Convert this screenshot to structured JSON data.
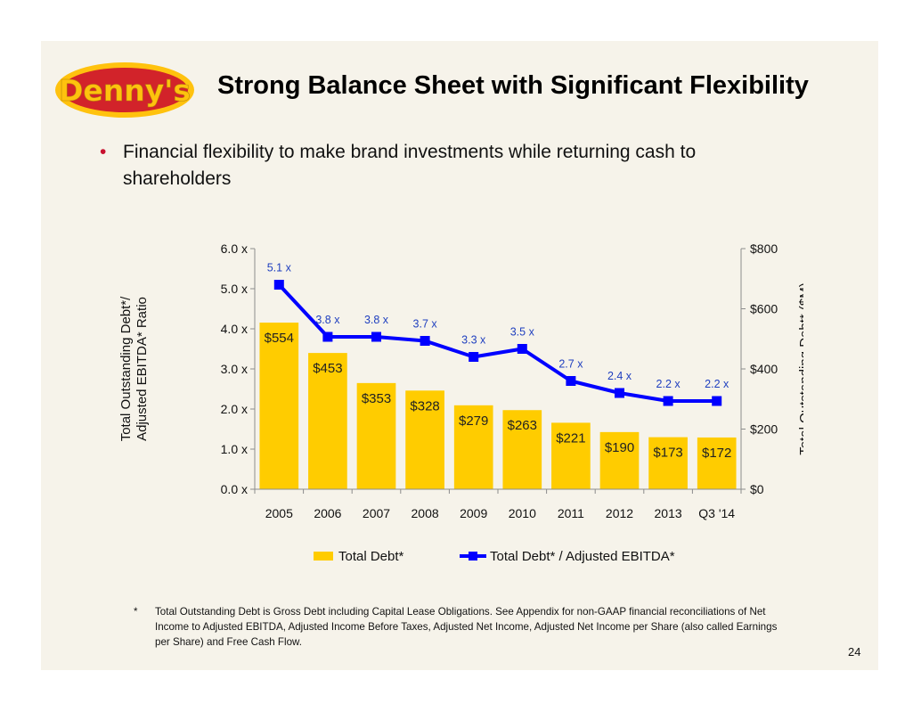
{
  "slide": {
    "title": "Strong Balance Sheet with Significant Flexibility",
    "logo_text": "Denny's",
    "bullet": "Financial flexibility to make brand investments while returning cash to shareholders",
    "footnote_marker": "*",
    "footnote": "Total Outstanding Debt is Gross Debt including Capital Lease Obligations.  See Appendix for non-GAAP financial reconciliations of Net Income to Adjusted EBITDA, Adjusted Income Before Taxes, Adjusted Net Income, Adjusted Net Income per Share (also called Earnings per Share) and Free Cash Flow.",
    "page_number": "24"
  },
  "colors": {
    "bar": "#ffcc00",
    "line": "#0000ff",
    "bullet": "#c8102e",
    "logo_red": "#d2232a",
    "logo_yellow": "#ffc20e"
  },
  "chart_data": {
    "type": "bar",
    "categories": [
      "2005",
      "2006",
      "2007",
      "2008",
      "2009",
      "2010",
      "2011",
      "2012",
      "2013",
      "Q3 '14"
    ],
    "series": [
      {
        "name": "Total Debt*",
        "type": "bar",
        "axis": "right",
        "values": [
          554,
          453,
          353,
          328,
          279,
          263,
          221,
          190,
          173,
          172
        ],
        "labels": [
          "$554",
          "$453",
          "$353",
          "$328",
          "$279",
          "$263",
          "$221",
          "$190",
          "$173",
          "$172"
        ]
      },
      {
        "name": "Total Debt* / Adjusted EBITDA*",
        "type": "line",
        "axis": "left",
        "values": [
          5.1,
          3.8,
          3.8,
          3.7,
          3.3,
          3.5,
          2.7,
          2.4,
          2.2,
          2.2
        ],
        "labels": [
          "5.1 x",
          "3.8 x",
          "3.8 x",
          "3.7 x",
          "3.3 x",
          "3.5 x",
          "2.7 x",
          "2.4 x",
          "2.2 x",
          "2.2 x"
        ]
      }
    ],
    "y_left": {
      "label_line1": "Total Outstanding Debt*/",
      "label_line2": "Adjusted EBITDA* Ratio",
      "range": [
        0,
        6
      ],
      "ticks": [
        0,
        1,
        2,
        3,
        4,
        5,
        6
      ],
      "tick_labels": [
        "0.0 x",
        "1.0 x",
        "2.0 x",
        "3.0 x",
        "4.0 x",
        "5.0 x",
        "6.0 x"
      ]
    },
    "y_right": {
      "label": "Total Outstanding Debt* ($M)",
      "range": [
        0,
        800
      ],
      "ticks": [
        0,
        200,
        400,
        600,
        800
      ],
      "tick_labels": [
        "$0",
        "$200",
        "$400",
        "$600",
        "$800"
      ]
    },
    "grid": false,
    "legend_position": "bottom"
  }
}
